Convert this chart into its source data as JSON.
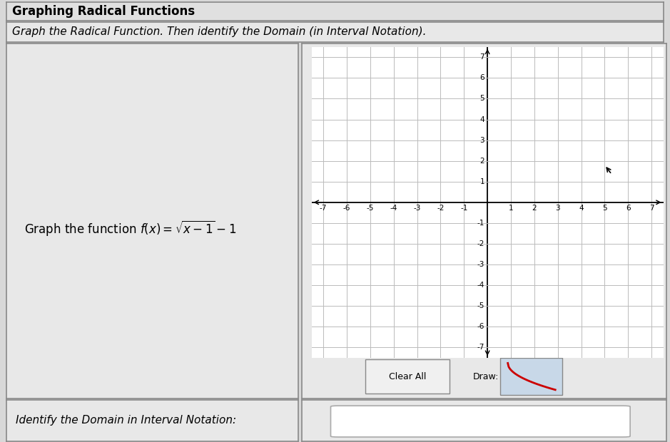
{
  "title": "Graphing Radical Functions",
  "subtitle": "Graph the Radical Function. Then identify the Domain (in Interval Notation).",
  "graph_instruction": "Graph the function $f(x) = \\sqrt{x-1} - 1$",
  "domain_label": "Identify the Domain in Interval Notation:",
  "axis_range": [
    -7,
    7
  ],
  "grid_color": "#bbbbbb",
  "axis_color": "#000000",
  "bg_color": "#d8d8d8",
  "panel_bg": "#e8e8e8",
  "graph_bg": "#e8e8e8",
  "title_bg": "#e0e0e0",
  "clear_all_label": "Clear All",
  "draw_label": "Draw:",
  "border_color": "#888888",
  "figsize": [
    9.39,
    6.2
  ],
  "dpi": 100
}
